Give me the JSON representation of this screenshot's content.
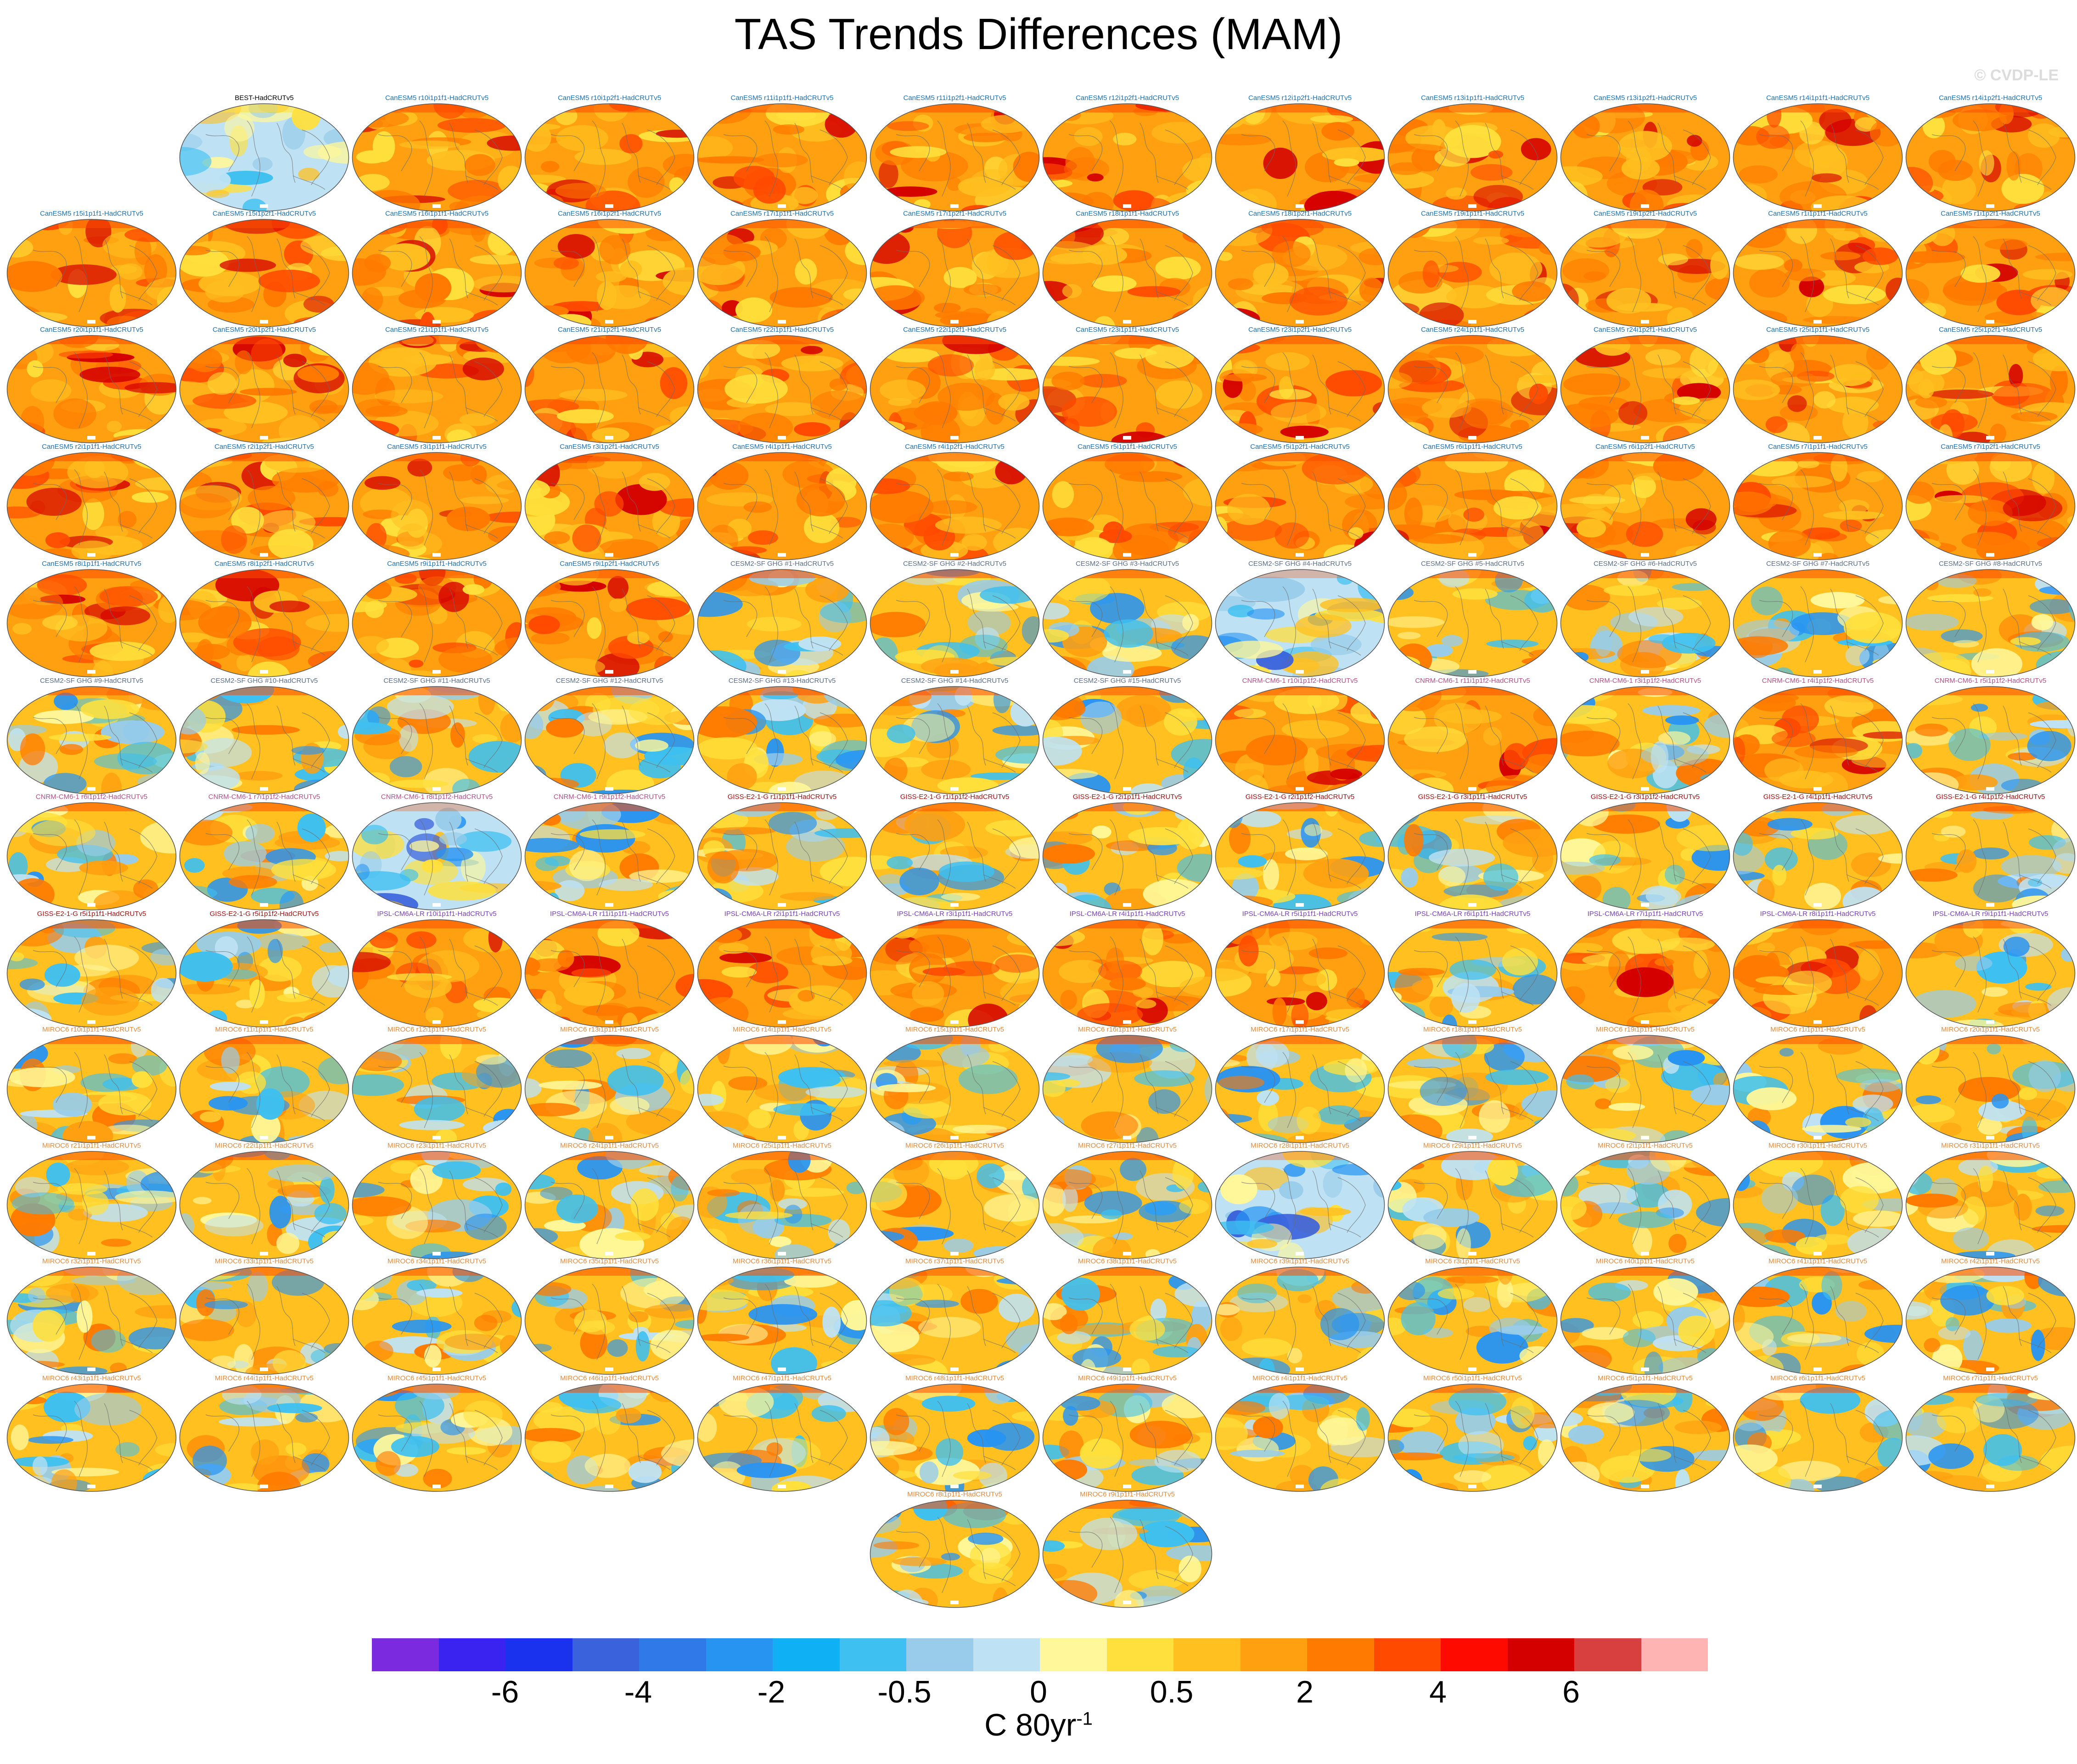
{
  "title": "TAS Trends Differences (MAM)",
  "credit": "© CVDP-LE",
  "colorbar": {
    "colors": [
      "#7b2ae0",
      "#3a22f0",
      "#1a32ee",
      "#3a62dc",
      "#2f7ae8",
      "#2894f2",
      "#10b0f4",
      "#3ec0f0",
      "#98ccea",
      "#bee2f4",
      "#fff799",
      "#ffe03c",
      "#ffc020",
      "#ffa010",
      "#ff7a00",
      "#ff4a00",
      "#ff0a00",
      "#d40000",
      "#d84040",
      "#ffb4b4"
    ],
    "tick_labels": [
      "-6",
      "-4",
      "-2",
      "-0.5",
      "0",
      "0.5",
      "2",
      "4",
      "6"
    ],
    "units": "C 80yr",
    "units_sup": "-1"
  },
  "panels": [
    {
      "label": "BEST-HadCRUTv5",
      "style": "best"
    },
    {
      "label": "CanESM5 r10i1p1f1-HadCRUTv5",
      "style": "warm"
    },
    {
      "label": "CanESM5 r10i1p2f1-HadCRUTv5",
      "style": "warm"
    },
    {
      "label": "CanESM5 r11i1p1f1-HadCRUTv5",
      "style": "warm"
    },
    {
      "label": "CanESM5 r11i1p2f1-HadCRUTv5",
      "style": "warm"
    },
    {
      "label": "CanESM5 r12i1p2f1-HadCRUTv5",
      "style": "warm"
    },
    {
      "label": "CanESM5 r12i1p2f1-HadCRUTv5",
      "style": "warm"
    },
    {
      "label": "CanESM5 r13i1p1f1-HadCRUTv5",
      "style": "warm"
    },
    {
      "label": "CanESM5 r13i1p2f1-HadCRUTv5",
      "style": "warm"
    },
    {
      "label": "CanESM5 r14i1p1f1-HadCRUTv5",
      "style": "warm"
    },
    {
      "label": "CanESM5 r14i1p2f1-HadCRUTv5",
      "style": "warm"
    },
    {
      "label": "CanESM5 r15i1p1f1-HadCRUTv5",
      "style": "warm"
    },
    {
      "label": "CanESM5 r15i1p2f1-HadCRUTv5",
      "style": "warm"
    },
    {
      "label": "CanESM5 r16i1p1f1-HadCRUTv5",
      "style": "warm"
    },
    {
      "label": "CanESM5 r16i1p2f1-HadCRUTv5",
      "style": "warm"
    },
    {
      "label": "CanESM5 r17i1p1f1-HadCRUTv5",
      "style": "warm"
    },
    {
      "label": "CanESM5 r17i1p2f1-HadCRUTv5",
      "style": "warm"
    },
    {
      "label": "CanESM5 r18i1p1f1-HadCRUTv5",
      "style": "warm"
    },
    {
      "label": "CanESM5 r18i1p2f1-HadCRUTv5",
      "style": "warm"
    },
    {
      "label": "CanESM5 r19i1p1f1-HadCRUTv5",
      "style": "warm"
    },
    {
      "label": "CanESM5 r19i1p2f1-HadCRUTv5",
      "style": "warm"
    },
    {
      "label": "CanESM5 r1i1p1f1-HadCRUTv5",
      "style": "warm"
    },
    {
      "label": "CanESM5 r1i1p2f1-HadCRUTv5",
      "style": "warm"
    },
    {
      "label": "CanESM5 r20i1p1f1-HadCRUTv5",
      "style": "warm"
    },
    {
      "label": "CanESM5 r20i1p2f1-HadCRUTv5",
      "style": "warm"
    },
    {
      "label": "CanESM5 r21i1p1f1-HadCRUTv5",
      "style": "warm"
    },
    {
      "label": "CanESM5 r21i1p2f1-HadCRUTv5",
      "style": "warm"
    },
    {
      "label": "CanESM5 r22i1p1f1-HadCRUTv5",
      "style": "warm"
    },
    {
      "label": "CanESM5 r22i1p2f1-HadCRUTv5",
      "style": "warm"
    },
    {
      "label": "CanESM5 r23i1p1f1-HadCRUTv5",
      "style": "warm"
    },
    {
      "label": "CanESM5 r23i1p2f1-HadCRUTv5",
      "style": "warm"
    },
    {
      "label": "CanESM5 r24i1p1f1-HadCRUTv5",
      "style": "warm"
    },
    {
      "label": "CanESM5 r24i1p2f1-HadCRUTv5",
      "style": "warm"
    },
    {
      "label": "CanESM5 r25i1p1f1-HadCRUTv5",
      "style": "warm"
    },
    {
      "label": "CanESM5 r25i1p2f1-HadCRUTv5",
      "style": "warm"
    },
    {
      "label": "CanESM5 r2i1p1f1-HadCRUTv5",
      "style": "warm"
    },
    {
      "label": "CanESM5 r2i1p2f1-HadCRUTv5",
      "style": "warm"
    },
    {
      "label": "CanESM5 r3i1p1f1-HadCRUTv5",
      "style": "warm"
    },
    {
      "label": "CanESM5 r3i1p2f1-HadCRUTv5",
      "style": "warm"
    },
    {
      "label": "CanESM5 r4i1p1f1-HadCRUTv5",
      "style": "warm"
    },
    {
      "label": "CanESM5 r4i1p2f1-HadCRUTv5",
      "style": "warm"
    },
    {
      "label": "CanESM5 r5i1p1f1-HadCRUTv5",
      "style": "warm"
    },
    {
      "label": "CanESM5 r5i1p2f1-HadCRUTv5",
      "style": "warm"
    },
    {
      "label": "CanESM5 r6i1p1f1-HadCRUTv5",
      "style": "warm"
    },
    {
      "label": "CanESM5 r6i1p2f1-HadCRUTv5",
      "style": "warm"
    },
    {
      "label": "CanESM5 r7i1p1f1-HadCRUTv5",
      "style": "warm"
    },
    {
      "label": "CanESM5 r7i1p2f1-HadCRUTv5",
      "style": "warm"
    },
    {
      "label": "CanESM5 r8i1p1f1-HadCRUTv5",
      "style": "warm"
    },
    {
      "label": "CanESM5 r8i1p2f1-HadCRUTv5",
      "style": "warm"
    },
    {
      "label": "CanESM5 r9i1p1f1-HadCRUTv5",
      "style": "warm"
    },
    {
      "label": "CanESM5 r9i1p2f1-HadCRUTv5",
      "style": "warm"
    },
    {
      "label": "CESM2-SF GHG #1-HadCRUTv5",
      "style": "mixed"
    },
    {
      "label": "CESM2-SF GHG #2-HadCRUTv5",
      "style": "mixed"
    },
    {
      "label": "CESM2-SF GHG #3-HadCRUTv5",
      "style": "mixed"
    },
    {
      "label": "CESM2-SF GHG #4-HadCRUTv5",
      "style": "cool"
    },
    {
      "label": "CESM2-SF GHG #5-HadCRUTv5",
      "style": "mixed"
    },
    {
      "label": "CESM2-SF GHG #6-HadCRUTv5",
      "style": "mixed"
    },
    {
      "label": "CESM2-SF GHG #7-HadCRUTv5",
      "style": "mixed"
    },
    {
      "label": "CESM2-SF GHG #8-HadCRUTv5",
      "style": "mixed"
    },
    {
      "label": "CESM2-SF GHG #9-HadCRUTv5",
      "style": "mixed"
    },
    {
      "label": "CESM2-SF GHG #10-HadCRUTv5",
      "style": "mixed"
    },
    {
      "label": "CESM2-SF GHG #11-HadCRUTv5",
      "style": "mixed"
    },
    {
      "label": "CESM2-SF GHG #12-HadCRUTv5",
      "style": "mixed"
    },
    {
      "label": "CESM2-SF GHG #13-HadCRUTv5",
      "style": "mixed"
    },
    {
      "label": "CESM2-SF GHG #14-HadCRUTv5",
      "style": "mixed"
    },
    {
      "label": "CESM2-SF GHG #15-HadCRUTv5",
      "style": "mixed"
    },
    {
      "label": "CNRM-CM6-1 r10i1p1f2-HadCRUTv5",
      "style": "warm"
    },
    {
      "label": "CNRM-CM6-1 r11i1p1f2-HadCRUTv5",
      "style": "warm"
    },
    {
      "label": "CNRM-CM6-1 r3i1p1f2-HadCRUTv5",
      "style": "mixed"
    },
    {
      "label": "CNRM-CM6-1 r4i1p1f2-HadCRUTv5",
      "style": "warm"
    },
    {
      "label": "CNRM-CM6-1 r5i1p1f2-HadCRUTv5",
      "style": "mixed"
    },
    {
      "label": "CNRM-CM6-1 r6i1p1f2-HadCRUTv5",
      "style": "mixed"
    },
    {
      "label": "CNRM-CM6-1 r7i1p1f2-HadCRUTv5",
      "style": "mixed"
    },
    {
      "label": "CNRM-CM6-1 r8i1p1f2-HadCRUTv5",
      "style": "cool"
    },
    {
      "label": "CNRM-CM6-1 r9i1p1f2-HadCRUTv5",
      "style": "mixed"
    },
    {
      "label": "GISS-E2-1-G r1i1p1f1-HadCRUTv5",
      "style": "mixed"
    },
    {
      "label": "GISS-E2-1-G r1i1p1f2-HadCRUTv5",
      "style": "mixed"
    },
    {
      "label": "GISS-E2-1-G r2i1p1f1-HadCRUTv5",
      "style": "mixed"
    },
    {
      "label": "GISS-E2-1-G r2i1p1f2-HadCRUTv5",
      "style": "mixed"
    },
    {
      "label": "GISS-E2-1-G r3i1p1f1-HadCRUTv5",
      "style": "mixed"
    },
    {
      "label": "GISS-E2-1-G r3i1p1f2-HadCRUTv5",
      "style": "mixed"
    },
    {
      "label": "GISS-E2-1-G r4i1p1f1-HadCRUTv5",
      "style": "mixed"
    },
    {
      "label": "GISS-E2-1-G r4i1p1f2-HadCRUTv5",
      "style": "mixed"
    },
    {
      "label": "GISS-E2-1-G r5i1p1f1-HadCRUTv5",
      "style": "mixed"
    },
    {
      "label": "GISS-E2-1-G r5i1p1f2-HadCRUTv5",
      "style": "mixed"
    },
    {
      "label": "IPSL-CM6A-LR r10i1p1f1-HadCRUTv5",
      "style": "warm"
    },
    {
      "label": "IPSL-CM6A-LR r11i1p1f1-HadCRUTv5",
      "style": "warm"
    },
    {
      "label": "IPSL-CM6A-LR r2i1p1f1-HadCRUTv5",
      "style": "warm"
    },
    {
      "label": "IPSL-CM6A-LR r3i1p1f1-HadCRUTv5",
      "style": "warm"
    },
    {
      "label": "IPSL-CM6A-LR r4i1p1f1-HadCRUTv5",
      "style": "warm"
    },
    {
      "label": "IPSL-CM6A-LR r5i1p1f1-HadCRUTv5",
      "style": "warm"
    },
    {
      "label": "IPSL-CM6A-LR r6i1p1f1-HadCRUTv5",
      "style": "mixed"
    },
    {
      "label": "IPSL-CM6A-LR r7i1p1f1-HadCRUTv5",
      "style": "warm"
    },
    {
      "label": "IPSL-CM6A-LR r8i1p1f1-HadCRUTv5",
      "style": "warm"
    },
    {
      "label": "IPSL-CM6A-LR r9i1p1f1-HadCRUTv5",
      "style": "mixed"
    },
    {
      "label": "MIROC6 r10i1p1f1-HadCRUTv5",
      "style": "mixed"
    },
    {
      "label": "MIROC6 r11i1p1f1-HadCRUTv5",
      "style": "mixed"
    },
    {
      "label": "MIROC6 r12i1p1f1-HadCRUTv5",
      "style": "mixed"
    },
    {
      "label": "MIROC6 r13i1p1f1-HadCRUTv5",
      "style": "mixed"
    },
    {
      "label": "MIROC6 r14i1p1f1-HadCRUTv5",
      "style": "mixed"
    },
    {
      "label": "MIROC6 r15i1p1f1-HadCRUTv5",
      "style": "mixed"
    },
    {
      "label": "MIROC6 r16i1p1f1-HadCRUTv5",
      "style": "mixed"
    },
    {
      "label": "MIROC6 r17i1p1f1-HadCRUTv5",
      "style": "mixed"
    },
    {
      "label": "MIROC6 r18i1p1f1-HadCRUTv5",
      "style": "mixed"
    },
    {
      "label": "MIROC6 r19i1p1f1-HadCRUTv5",
      "style": "mixed"
    },
    {
      "label": "MIROC6 r1i1p1f1-HadCRUTv5",
      "style": "mixed"
    },
    {
      "label": "MIROC6 r20i1p1f1-HadCRUTv5",
      "style": "mixed"
    },
    {
      "label": "MIROC6 r21i1p1f1-HadCRUTv5",
      "style": "mixed"
    },
    {
      "label": "MIROC6 r22i1p1f1-HadCRUTv5",
      "style": "mixed"
    },
    {
      "label": "MIROC6 r23i1p1f1-HadCRUTv5",
      "style": "mixed"
    },
    {
      "label": "MIROC6 r24i1p1f1-HadCRUTv5",
      "style": "mixed"
    },
    {
      "label": "MIROC6 r25i1p1f1-HadCRUTv5",
      "style": "mixed"
    },
    {
      "label": "MIROC6 r26i1p1f1-HadCRUTv5",
      "style": "mixed"
    },
    {
      "label": "MIROC6 r27i1p1f1-HadCRUTv5",
      "style": "mixed"
    },
    {
      "label": "MIROC6 r28i1p1f1-HadCRUTv5",
      "style": "cool"
    },
    {
      "label": "MIROC6 r29i1p1f1-HadCRUTv5",
      "style": "mixed"
    },
    {
      "label": "MIROC6 r2i1p1f1-HadCRUTv5",
      "style": "mixed"
    },
    {
      "label": "MIROC6 r30i1p1f1-HadCRUTv5",
      "style": "mixed"
    },
    {
      "label": "MIROC6 r31i1p1f1-HadCRUTv5",
      "style": "mixed"
    },
    {
      "label": "MIROC6 r32i1p1f1-HadCRUTv5",
      "style": "mixed"
    },
    {
      "label": "MIROC6 r33i1p1f1-HadCRUTv5",
      "style": "mixed"
    },
    {
      "label": "MIROC6 r34i1p1f1-HadCRUTv5",
      "style": "mixed"
    },
    {
      "label": "MIROC6 r35i1p1f1-HadCRUTv5",
      "style": "mixed"
    },
    {
      "label": "MIROC6 r36i1p1f1-HadCRUTv5",
      "style": "mixed"
    },
    {
      "label": "MIROC6 r37i1p1f1-HadCRUTv5",
      "style": "mixed"
    },
    {
      "label": "MIROC6 r38i1p1f1-HadCRUTv5",
      "style": "mixed"
    },
    {
      "label": "MIROC6 r39i1p1f1-HadCRUTv5",
      "style": "mixed"
    },
    {
      "label": "MIROC6 r3i1p1f1-HadCRUTv5",
      "style": "mixed"
    },
    {
      "label": "MIROC6 r40i1p1f1-HadCRUTv5",
      "style": "mixed"
    },
    {
      "label": "MIROC6 r41i1p1f1-HadCRUTv5",
      "style": "mixed"
    },
    {
      "label": "MIROC6 r42i1p1f1-HadCRUTv5",
      "style": "mixed"
    },
    {
      "label": "MIROC6 r43i1p1f1-HadCRUTv5",
      "style": "mixed"
    },
    {
      "label": "MIROC6 r44i1p1f1-HadCRUTv5",
      "style": "mixed"
    },
    {
      "label": "MIROC6 r45i1p1f1-HadCRUTv5",
      "style": "mixed"
    },
    {
      "label": "MIROC6 r46i1p1f1-HadCRUTv5",
      "style": "mixed"
    },
    {
      "label": "MIROC6 r47i1p1f1-HadCRUTv5",
      "style": "mixed"
    },
    {
      "label": "MIROC6 r48i1p1f1-HadCRUTv5",
      "style": "mixed"
    },
    {
      "label": "MIROC6 r49i1p1f1-HadCRUTv5",
      "style": "mixed"
    },
    {
      "label": "MIROC6 r4i1p1f1-HadCRUTv5",
      "style": "mixed"
    },
    {
      "label": "MIROC6 r50i1p1f1-HadCRUTv5",
      "style": "mixed"
    },
    {
      "label": "MIROC6 r5i1p1f1-HadCRUTv5",
      "style": "mixed"
    },
    {
      "label": "MIROC6 r6i1p1f1-HadCRUTv5",
      "style": "mixed"
    },
    {
      "label": "MIROC6 r7i1p1f1-HadCRUTv5",
      "style": "mixed"
    },
    {
      "label": "MIROC6 r8i1p1f1-HadCRUTv5",
      "style": "mixed"
    },
    {
      "label": "MIROC6 r9i1p1f1-HadCRUTv5",
      "style": "mixed"
    }
  ]
}
